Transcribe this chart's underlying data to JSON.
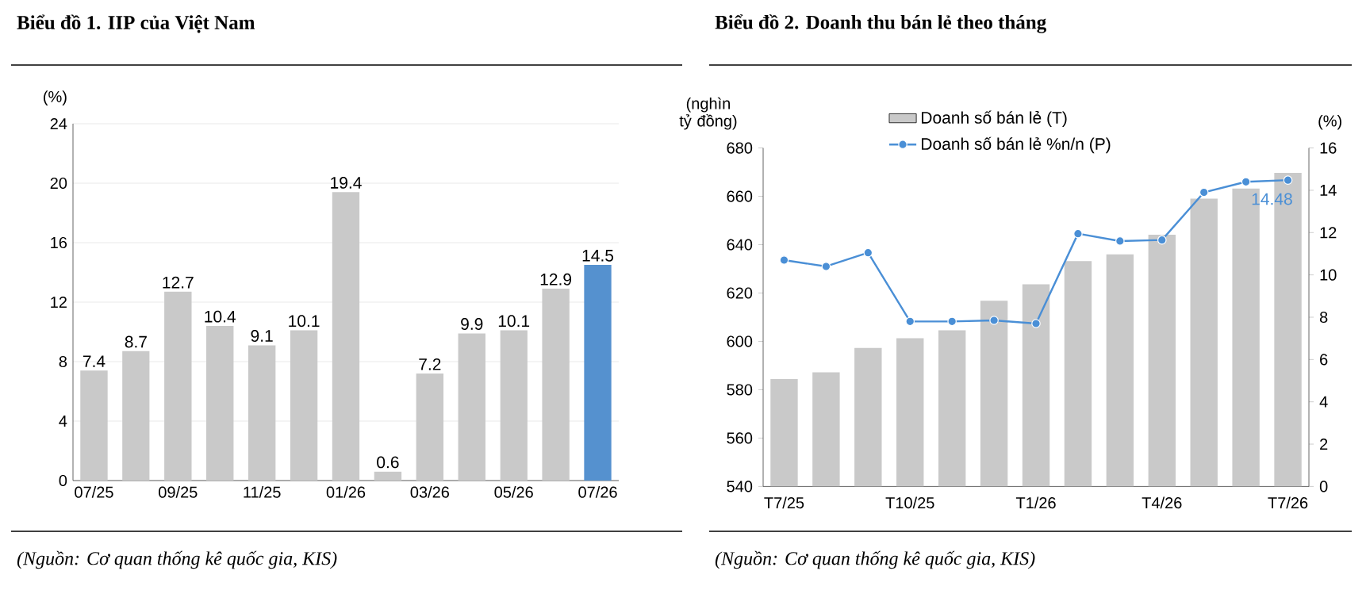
{
  "chart_data": [
    {
      "type": "bar",
      "title": "Biểu đồ 1. IIP của Việt Nam",
      "ylabel": "(%)",
      "categories": [
        "07/25",
        null,
        "09/25",
        null,
        "11/25",
        null,
        "01/26",
        null,
        "03/26",
        null,
        "05/26",
        null,
        "07/26"
      ],
      "values": [
        7.4,
        8.7,
        12.7,
        10.4,
        9.1,
        10.1,
        19.4,
        0.6,
        7.2,
        9.9,
        10.1,
        12.9,
        14.5
      ],
      "colors": [
        "#c9c9c9",
        "#c9c9c9",
        "#c9c9c9",
        "#c9c9c9",
        "#c9c9c9",
        "#c9c9c9",
        "#c9c9c9",
        "#c9c9c9",
        "#c9c9c9",
        "#c9c9c9",
        "#c9c9c9",
        "#c9c9c9",
        "#5591cf"
      ],
      "ylim": [
        0,
        24
      ],
      "yticks": [
        0,
        4,
        8,
        12,
        16,
        20,
        24
      ],
      "grid": "y",
      "data_labels": true,
      "annotations": [
        "(Nguồn: Cơ quan thống kê quốc gia, KIS)"
      ]
    },
    {
      "type": "bar",
      "title": "Biểu đồ 2. Doanh thu bán lẻ theo tháng",
      "ylabel": "(nghìn tỷ đồng)",
      "y2label": "(%)",
      "categories": [
        "T7/25",
        null,
        null,
        "T10/25",
        null,
        null,
        "T1/26",
        null,
        null,
        "T4/26",
        null,
        null,
        "T7/26"
      ],
      "series": [
        {
          "name": "Doanh số bán lẻ (T)",
          "color": "#c9c9c9",
          "values": [
            584.4,
            587.2,
            597.3,
            601.3,
            604.6,
            616.8,
            623.6,
            633.2,
            636.0,
            644.1,
            659.0,
            663.2,
            669.7
          ]
        },
        {
          "name": "Doanh số bán lẻ %n/n (P)",
          "type": "line",
          "axis": "y2",
          "color": "#4a8fd6",
          "values": [
            10.7,
            10.4,
            11.05,
            7.8,
            7.8,
            7.85,
            7.7,
            11.95,
            11.6,
            11.65,
            13.9,
            14.4,
            14.48
          ],
          "value_labels": [
            null,
            null,
            null,
            null,
            null,
            null,
            null,
            null,
            null,
            null,
            null,
            null,
            "14.48"
          ]
        }
      ],
      "ylim": [
        540,
        680
      ],
      "yticks": [
        540,
        560,
        580,
        600,
        620,
        640,
        660,
        680
      ],
      "y2lim": [
        0,
        16
      ],
      "y2ticks": [
        0,
        2,
        4,
        6,
        8,
        10,
        12,
        14,
        16
      ],
      "marker": "circle",
      "legend": "top left",
      "grid": false,
      "annotations": [
        "(Nguồn: Cơ quan thống kê quốc gia, KIS)"
      ]
    }
  ]
}
